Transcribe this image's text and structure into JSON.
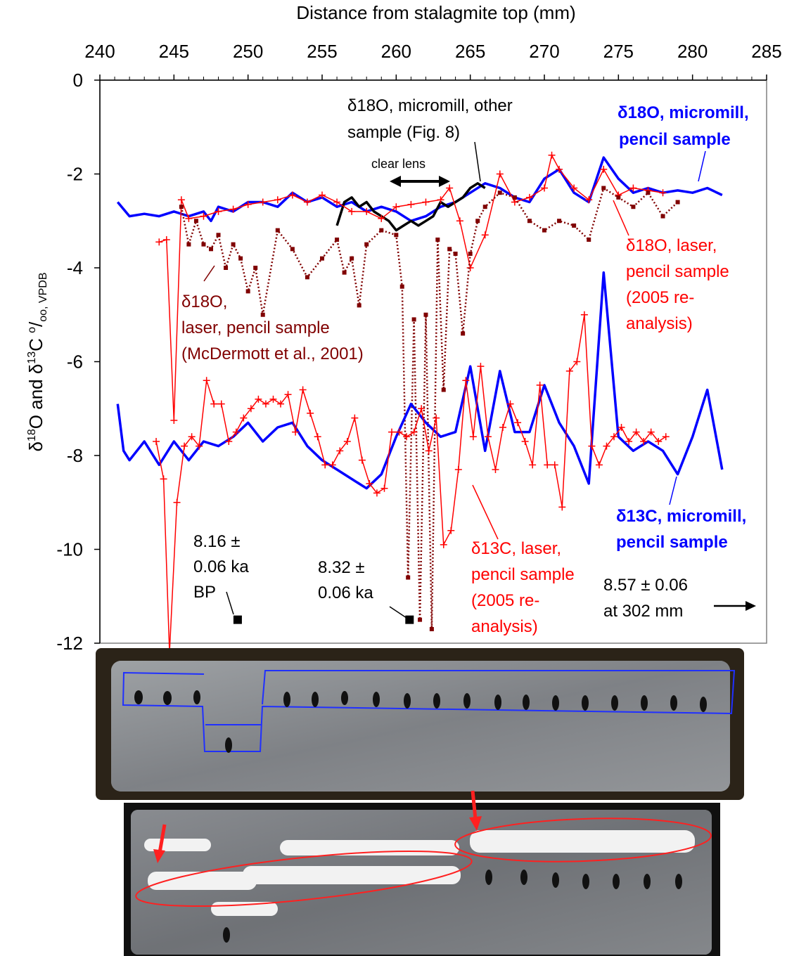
{
  "chart_data": {
    "type": "line",
    "title": "",
    "xlabel": "Distance from stalagmite top (mm)",
    "ylabel": "δ18O and δ13C ‰, VPDB",
    "xlim": [
      240,
      285
    ],
    "ylim": [
      -12,
      0
    ],
    "x_ticks": [
      "240",
      "245",
      "250",
      "255",
      "260",
      "265",
      "270",
      "275",
      "280",
      "285"
    ],
    "y_ticks": [
      "0",
      "-2",
      "-4",
      "-6",
      "-8",
      "-10",
      "-12"
    ],
    "grid": false,
    "series": [
      {
        "name": "δ18O, micromill, pencil sample",
        "color": "#0000ff",
        "style": "thick",
        "x": [
          241.2,
          242,
          243,
          244,
          245,
          246,
          247,
          247.5,
          248,
          249,
          250,
          251,
          252,
          253,
          254,
          255,
          256,
          257,
          258,
          259,
          260,
          261,
          262,
          263,
          264,
          265,
          266,
          267,
          268,
          269,
          270,
          271,
          272,
          273,
          274,
          275,
          276,
          277,
          278,
          279,
          280,
          281,
          282
        ],
        "y": [
          -2.6,
          -2.9,
          -2.85,
          -2.9,
          -2.8,
          -2.9,
          -2.8,
          -3.0,
          -2.7,
          -2.8,
          -2.6,
          -2.6,
          -2.7,
          -2.4,
          -2.6,
          -2.5,
          -2.7,
          -2.6,
          -2.8,
          -2.7,
          -2.8,
          -3.0,
          -2.9,
          -2.7,
          -2.6,
          -2.4,
          -2.2,
          -2.3,
          -2.5,
          -2.6,
          -2.1,
          -1.9,
          -2.4,
          -2.6,
          -1.65,
          -2.1,
          -2.4,
          -2.3,
          -2.4,
          -2.35,
          -2.4,
          -2.3,
          -2.45
        ]
      },
      {
        "name": "δ18O, micromill, other sample (Fig. 8)",
        "color": "#000000",
        "style": "thick",
        "x": [
          256,
          256.5,
          257,
          257.5,
          258,
          258.5,
          259,
          259.5,
          260,
          260.5,
          261,
          261.5,
          262,
          262.5,
          263,
          263.5,
          264,
          264.5,
          265,
          265.5,
          266
        ],
        "y": [
          -3.1,
          -2.6,
          -2.5,
          -2.7,
          -2.6,
          -2.8,
          -2.9,
          -3.0,
          -3.2,
          -3.1,
          -3.0,
          -3.1,
          -3.0,
          -2.9,
          -2.6,
          -2.7,
          -2.6,
          -2.5,
          -2.3,
          -2.2,
          -2.3
        ]
      },
      {
        "name": "δ18O, laser, pencil sample (2005 re-analysis)",
        "color": "#ff0000",
        "style": "crosses",
        "x": [
          244,
          244.5,
          245.0,
          245.5,
          246,
          247,
          248,
          249,
          250,
          251,
          252,
          253,
          254,
          255,
          256,
          257,
          258,
          259,
          260,
          261,
          262,
          263,
          263.6,
          264.3,
          265,
          266,
          267,
          268,
          269,
          270,
          270.5,
          271,
          272,
          273,
          274,
          275,
          276,
          277,
          278
        ],
        "y": [
          -3.45,
          -3.4,
          -7.25,
          -2.55,
          -2.95,
          -2.9,
          -2.8,
          -2.75,
          -2.65,
          -2.6,
          -2.55,
          -2.45,
          -2.6,
          -2.45,
          -2.6,
          -2.8,
          -2.8,
          -2.95,
          -2.7,
          -2.65,
          -2.6,
          -2.55,
          -2.3,
          -3.0,
          -4.0,
          -3.3,
          -2.0,
          -2.6,
          -2.5,
          -2.3,
          -1.6,
          -1.9,
          -2.3,
          -2.55,
          -1.9,
          -2.45,
          -2.3,
          -2.35,
          -2.4
        ]
      },
      {
        "name": "δ18O, laser, pencil sample (McDermott et al., 2001)",
        "color": "#800000",
        "style": "dotted-squares",
        "x": [
          245.5,
          246,
          246.5,
          247,
          247.5,
          248,
          248.5,
          249,
          249.5,
          250,
          250.5,
          251,
          252,
          253,
          254,
          255,
          256,
          256.5,
          257,
          257.5,
          258,
          259,
          260,
          260.4,
          260.8,
          261.2,
          261.6,
          262.0,
          262.4,
          262.8,
          263.2,
          263.6,
          264,
          264.5,
          265,
          265.5,
          266,
          267,
          268,
          269,
          270,
          271,
          272,
          273,
          274,
          275,
          276,
          277,
          278,
          279
        ],
        "y": [
          -2.7,
          -3.5,
          -3.0,
          -3.5,
          -3.6,
          -3.3,
          -4.0,
          -3.5,
          -3.8,
          -4.5,
          -4.0,
          -5.0,
          -3.2,
          -3.6,
          -4.2,
          -3.8,
          -3.4,
          -4.1,
          -3.8,
          -4.8,
          -3.5,
          -3.2,
          -3.3,
          -4.4,
          -10.6,
          -5.1,
          -11.5,
          -5.0,
          -11.7,
          -3.4,
          -6.6,
          -3.6,
          -3.7,
          -5.4,
          -3.7,
          -3.0,
          -2.7,
          -2.4,
          -2.5,
          -3.0,
          -3.2,
          -3.0,
          -3.1,
          -3.4,
          -2.3,
          -2.5,
          -2.7,
          -2.4,
          -2.9,
          -2.6
        ]
      },
      {
        "name": "δ13C, micromill, pencil sample",
        "color": "#0000ff",
        "style": "thick",
        "x": [
          241.2,
          241.6,
          242,
          243,
          244,
          245,
          246,
          247,
          248,
          249,
          250,
          251,
          252,
          253,
          254,
          255,
          256,
          257,
          258,
          259,
          260,
          261,
          262,
          263,
          264,
          265,
          266,
          267,
          268,
          269,
          270,
          271,
          272,
          273,
          274,
          275,
          276,
          277,
          278,
          279,
          280,
          281,
          282
        ],
        "y": [
          -6.9,
          -7.9,
          -8.1,
          -7.7,
          -8.2,
          -7.7,
          -8.1,
          -7.7,
          -7.8,
          -7.6,
          -7.3,
          -7.7,
          -7.4,
          -7.3,
          -7.8,
          -8.1,
          -8.3,
          -8.5,
          -8.7,
          -8.4,
          -7.6,
          -6.9,
          -7.3,
          -7.6,
          -7.5,
          -6.1,
          -7.9,
          -6.2,
          -7.5,
          -7.5,
          -6.5,
          -7.3,
          -7.8,
          -8.6,
          -4.1,
          -7.6,
          -7.9,
          -7.7,
          -7.9,
          -8.4,
          -7.6,
          -6.6,
          -8.3
        ]
      },
      {
        "name": "δ13C, laser, pencil sample (2005 re-analysis)",
        "color": "#ff0000",
        "style": "crosses",
        "x": [
          243.8,
          244.3,
          244.7,
          245.2,
          245.7,
          246.2,
          246.7,
          247.2,
          247.7,
          248.2,
          248.7,
          249.2,
          249.7,
          250.2,
          250.7,
          251.2,
          251.7,
          252.2,
          252.7,
          253.2,
          253.7,
          254.2,
          254.7,
          255.2,
          255.7,
          256.2,
          256.7,
          257.2,
          257.7,
          258.2,
          258.7,
          259.2,
          259.7,
          260.2,
          260.7,
          261.2,
          261.7,
          262.2,
          262.7,
          263.2,
          263.7,
          264.2,
          264.7,
          265.2,
          265.7,
          266.2,
          266.7,
          267.2,
          267.7,
          268.2,
          268.7,
          269.2,
          269.7,
          270.2,
          270.7,
          271.2,
          271.7,
          272.2,
          272.7,
          273.2,
          273.7,
          274.2,
          274.7,
          275.2,
          275.7,
          276.2,
          276.7,
          277.2,
          277.7,
          278.2
        ],
        "y": [
          -7.7,
          -8.5,
          -12.2,
          -9.0,
          -7.8,
          -7.6,
          -7.8,
          -6.4,
          -6.9,
          -6.9,
          -7.7,
          -7.5,
          -7.2,
          -7.0,
          -6.8,
          -6.9,
          -6.8,
          -6.9,
          -6.7,
          -7.5,
          -6.6,
          -7.1,
          -7.6,
          -8.2,
          -8.2,
          -7.9,
          -7.7,
          -7.2,
          -8.1,
          -8.6,
          -8.8,
          -8.7,
          -7.5,
          -7.5,
          -7.6,
          -7.5,
          -7.0,
          -7.9,
          -7.2,
          -9.9,
          -9.6,
          -8.3,
          -6.4,
          -7.6,
          -6.1,
          -7.6,
          -8.3,
          -7.4,
          -6.9,
          -7.3,
          -7.7,
          -8.2,
          -6.5,
          -8.2,
          -8.2,
          -9.1,
          -6.2,
          -6.0,
          -5.0,
          -7.8,
          -8.2,
          -7.8,
          -7.6,
          -7.4,
          -7.7,
          -7.5,
          -7.7,
          -7.5,
          -7.7,
          -7.6
        ]
      }
    ],
    "age_points": [
      {
        "x": 249.3,
        "y": -11.5,
        "label": "8.16 ± 0.06 ka BP"
      },
      {
        "x": 260.9,
        "y": -11.5,
        "label": "8.32 ± 0.06 ka"
      }
    ]
  },
  "labels": {
    "x_axis_title": "Distance from stalagmite top (mm)",
    "y_axis_title_prefix": "δ",
    "y_axis_sup1": "18",
    "y_axis_mid": "O and δ",
    "y_axis_sup2": "13",
    "y_axis_mid2": "C ",
    "y_axis_sup3": "o",
    "y_axis_slash": "/",
    "y_axis_sub": "oo, VPDB",
    "blue_o18_line1": "δ18O, micromill,",
    "blue_o18_line2": "pencil sample",
    "black_o18_line1": "δ18O, micromill, other",
    "black_o18_line2": "sample (Fig. 8)",
    "clear_lens": "clear lens",
    "red_o18_line1": "δ18O, laser,",
    "red_o18_line2": "pencil sample",
    "red_o18_line3": "(2005 re-",
    "red_o18_line4": "analysis)",
    "dark_o18_line1": "δ18O,",
    "dark_o18_line2": "laser, pencil sample",
    "dark_o18_line3": "(McDermott et al., 2001)",
    "blue_c13_line1": "δ13C, micromill,",
    "blue_c13_line2": "pencil sample",
    "red_c13_line1": "δ13C, laser,",
    "red_c13_line2": "pencil sample",
    "red_c13_line3": "(2005 re-",
    "red_c13_line4": "analysis)",
    "age1_line1": "8.16 ±",
    "age1_line2": "0.06 ka",
    "age1_line3": "BP",
    "age2_line1": "8.32 ±",
    "age2_line2": "0.06 ka",
    "age3_line1": "8.57 ± 0.06",
    "age3_line2": "at 302 mm"
  },
  "colors": {
    "blue": "#0000ff",
    "red": "#ff0000",
    "dark_red": "#800000",
    "black": "#000000"
  }
}
